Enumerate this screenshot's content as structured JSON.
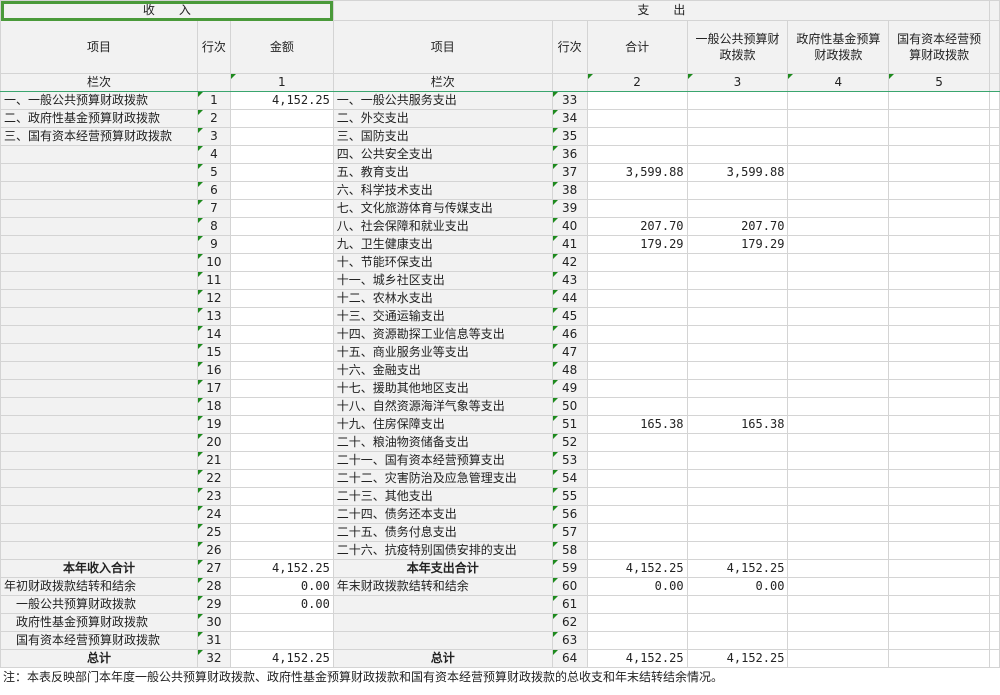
{
  "header": {
    "income": "收　　入",
    "expense": "支　　出",
    "item": "项目",
    "line": "行次",
    "amount": "金额",
    "total": "合计",
    "col_general": "一般公共预算财政拨款",
    "col_fund": "政府性基金预算财政拨款",
    "col_state": "国有资本经营预算财政拨款",
    "lanci": "栏次",
    "n1": "1",
    "n2": "2",
    "n3": "3",
    "n4": "4",
    "n5": "5"
  },
  "rows": [
    {
      "il": "一、一般公共预算财政拨款",
      "in": "1",
      "ia": "4,152.25",
      "el": "一、一般公共服务支出",
      "en": "33",
      "e2": "",
      "e3": ""
    },
    {
      "il": "二、政府性基金预算财政拨款",
      "in": "2",
      "ia": "",
      "el": "二、外交支出",
      "en": "34",
      "e2": "",
      "e3": ""
    },
    {
      "il": "三、国有资本经营预算财政拨款",
      "in": "3",
      "ia": "",
      "el": "三、国防支出",
      "en": "35",
      "e2": "",
      "e3": ""
    },
    {
      "il": "",
      "in": "4",
      "ia": "",
      "el": "四、公共安全支出",
      "en": "36",
      "e2": "",
      "e3": ""
    },
    {
      "il": "",
      "in": "5",
      "ia": "",
      "el": "五、教育支出",
      "en": "37",
      "e2": "3,599.88",
      "e3": "3,599.88"
    },
    {
      "il": "",
      "in": "6",
      "ia": "",
      "el": "六、科学技术支出",
      "en": "38",
      "e2": "",
      "e3": ""
    },
    {
      "il": "",
      "in": "7",
      "ia": "",
      "el": "七、文化旅游体育与传媒支出",
      "en": "39",
      "e2": "",
      "e3": ""
    },
    {
      "il": "",
      "in": "8",
      "ia": "",
      "el": "八、社会保障和就业支出",
      "en": "40",
      "e2": "207.70",
      "e3": "207.70"
    },
    {
      "il": "",
      "in": "9",
      "ia": "",
      "el": "九、卫生健康支出",
      "en": "41",
      "e2": "179.29",
      "e3": "179.29"
    },
    {
      "il": "",
      "in": "10",
      "ia": "",
      "el": "十、节能环保支出",
      "en": "42",
      "e2": "",
      "e3": ""
    },
    {
      "il": "",
      "in": "11",
      "ia": "",
      "el": "十一、城乡社区支出",
      "en": "43",
      "e2": "",
      "e3": ""
    },
    {
      "il": "",
      "in": "12",
      "ia": "",
      "el": "十二、农林水支出",
      "en": "44",
      "e2": "",
      "e3": ""
    },
    {
      "il": "",
      "in": "13",
      "ia": "",
      "el": "十三、交通运输支出",
      "en": "45",
      "e2": "",
      "e3": ""
    },
    {
      "il": "",
      "in": "14",
      "ia": "",
      "el": "十四、资源勘探工业信息等支出",
      "en": "46",
      "e2": "",
      "e3": ""
    },
    {
      "il": "",
      "in": "15",
      "ia": "",
      "el": "十五、商业服务业等支出",
      "en": "47",
      "e2": "",
      "e3": ""
    },
    {
      "il": "",
      "in": "16",
      "ia": "",
      "el": "十六、金融支出",
      "en": "48",
      "e2": "",
      "e3": ""
    },
    {
      "il": "",
      "in": "17",
      "ia": "",
      "el": "十七、援助其他地区支出",
      "en": "49",
      "e2": "",
      "e3": ""
    },
    {
      "il": "",
      "in": "18",
      "ia": "",
      "el": "十八、自然资源海洋气象等支出",
      "en": "50",
      "e2": "",
      "e3": ""
    },
    {
      "il": "",
      "in": "19",
      "ia": "",
      "el": "十九、住房保障支出",
      "en": "51",
      "e2": "165.38",
      "e3": "165.38"
    },
    {
      "il": "",
      "in": "20",
      "ia": "",
      "el": "二十、粮油物资储备支出",
      "en": "52",
      "e2": "",
      "e3": ""
    },
    {
      "il": "",
      "in": "21",
      "ia": "",
      "el": "二十一、国有资本经营预算支出",
      "en": "53",
      "e2": "",
      "e3": ""
    },
    {
      "il": "",
      "in": "22",
      "ia": "",
      "el": "二十二、灾害防治及应急管理支出",
      "en": "54",
      "e2": "",
      "e3": ""
    },
    {
      "il": "",
      "in": "23",
      "ia": "",
      "el": "二十三、其他支出",
      "en": "55",
      "e2": "",
      "e3": ""
    },
    {
      "il": "",
      "in": "24",
      "ia": "",
      "el": "二十四、债务还本支出",
      "en": "56",
      "e2": "",
      "e3": ""
    },
    {
      "il": "",
      "in": "25",
      "ia": "",
      "el": "二十五、债务付息支出",
      "en": "57",
      "e2": "",
      "e3": ""
    },
    {
      "il": "",
      "in": "26",
      "ia": "",
      "el": "二十六、抗疫特别国债安排的支出",
      "en": "58",
      "e2": "",
      "e3": ""
    },
    {
      "il": "本年收入合计",
      "in": "27",
      "ia": "4,152.25",
      "el": "本年支出合计",
      "en": "59",
      "e2": "4,152.25",
      "e3": "4,152.25",
      "bold": true
    },
    {
      "il": "年初财政拨款结转和结余",
      "in": "28",
      "ia": "0.00",
      "el": "年末财政拨款结转和结余",
      "en": "60",
      "e2": "0.00",
      "e3": "0.00"
    },
    {
      "il": "　一般公共预算财政拨款",
      "in": "29",
      "ia": "0.00",
      "el": "",
      "en": "61",
      "e2": "",
      "e3": ""
    },
    {
      "il": "　政府性基金预算财政拨款",
      "in": "30",
      "ia": "",
      "el": "",
      "en": "62",
      "e2": "",
      "e3": ""
    },
    {
      "il": "　国有资本经营预算财政拨款",
      "in": "31",
      "ia": "",
      "el": "",
      "en": "63",
      "e2": "",
      "e3": ""
    },
    {
      "il": "总计",
      "in": "32",
      "ia": "4,152.25",
      "el": "总计",
      "en": "64",
      "e2": "4,152.25",
      "e3": "4,152.25",
      "bold": true
    }
  ],
  "note": "注：本表反映部门本年度一般公共预算财政拨款、政府性基金预算财政拨款和国有资本经营预算财政拨款的总收支和年末结转结余情况。"
}
